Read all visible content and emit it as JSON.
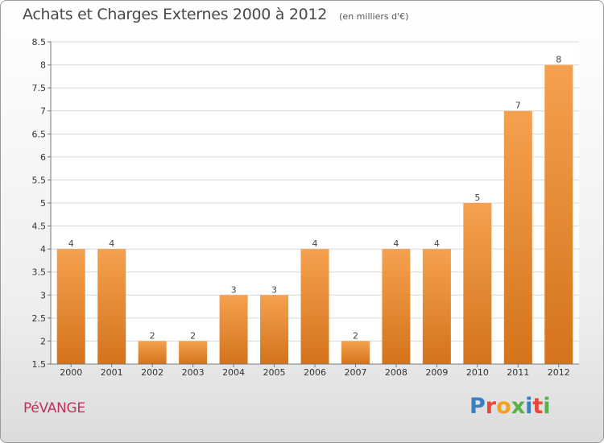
{
  "header": {
    "title": "Achats et Charges Externes 2000 à 2012",
    "subtitle": "(en milliers d'€)"
  },
  "footer": {
    "commune": "PéVANGE",
    "brand": "Proxiti",
    "brand_colors": [
      "#3a7fc2",
      "#e8473a",
      "#f2a01e",
      "#5ab14a",
      "#3a7fc2",
      "#e8473a",
      "#5ab14a"
    ]
  },
  "chart_data": {
    "type": "bar",
    "categories": [
      "2000",
      "2001",
      "2002",
      "2003",
      "2004",
      "2005",
      "2006",
      "2007",
      "2008",
      "2009",
      "2010",
      "2011",
      "2012"
    ],
    "values": [
      4,
      4,
      2,
      2,
      3,
      3,
      4,
      2,
      4,
      4,
      5,
      7,
      8
    ],
    "data_labels": [
      "4",
      "4",
      "2",
      "2",
      "3",
      "3",
      "4",
      "2",
      "4",
      "4",
      "5",
      "7",
      "8"
    ],
    "title": "Achats et Charges Externes 2000 à 2012",
    "ylim": [
      1.5,
      8.5
    ],
    "yticks": [
      "1.5",
      "2",
      "2.5",
      "3",
      "3.5",
      "4",
      "4.5",
      "5",
      "5.5",
      "6",
      "6.5",
      "7",
      "7.5",
      "8",
      "8.5"
    ],
    "grid": true,
    "bar_color_top": "#f5a14e",
    "bar_color_bottom": "#d4731c"
  }
}
